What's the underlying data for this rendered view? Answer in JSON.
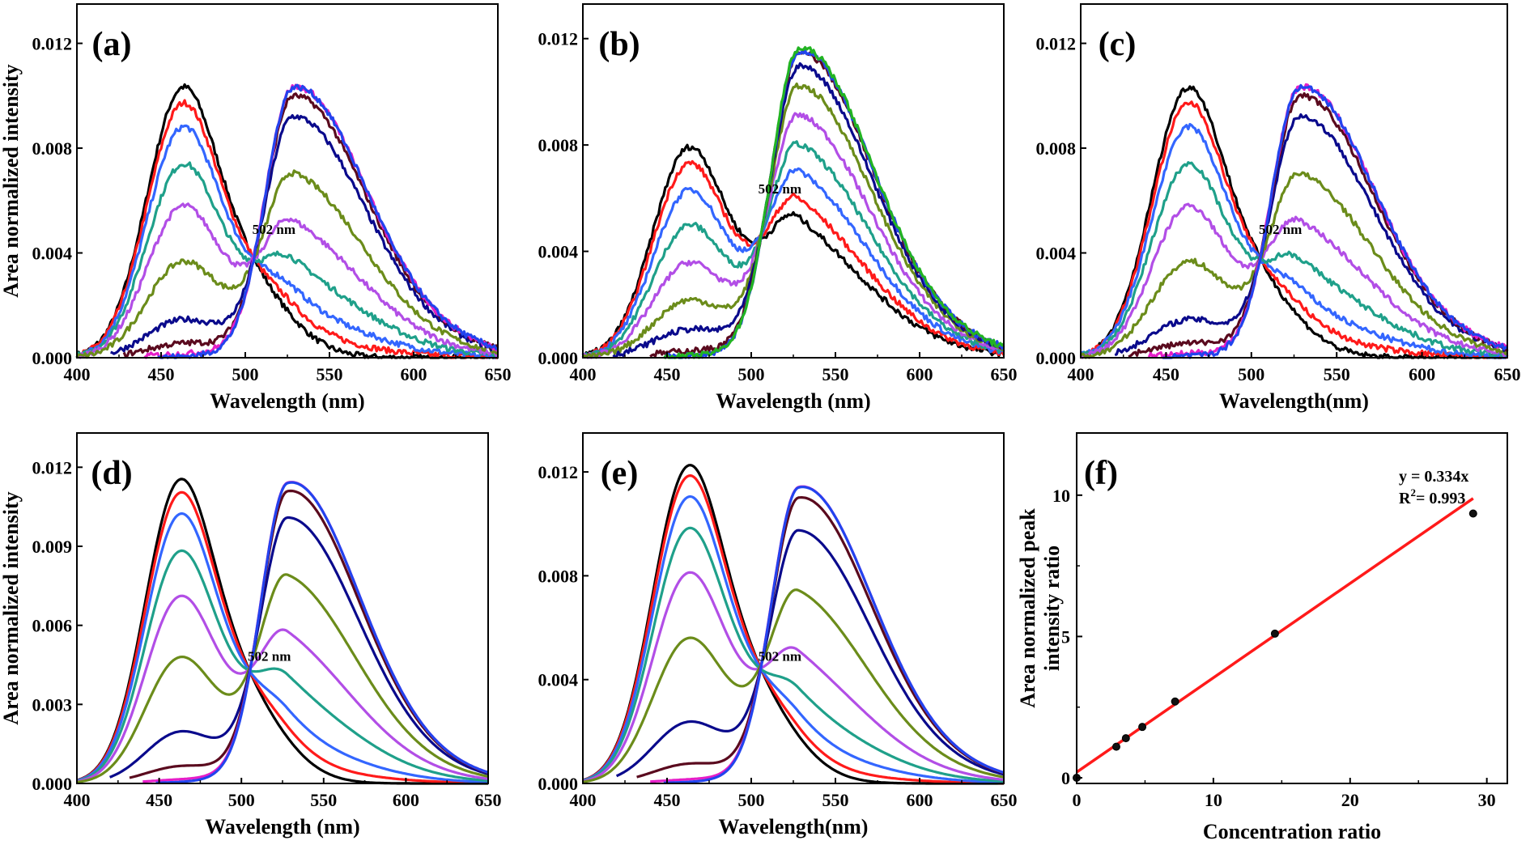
{
  "chart_data": [
    {
      "type": "line",
      "panel": "(a)",
      "xlabel": "Wavelength (nm)",
      "ylabel": "Area normalized intensity",
      "xlim": [
        400,
        650
      ],
      "ylim": [
        0,
        0.0135
      ],
      "xticks": [
        "400",
        "450",
        "500",
        "550",
        "600",
        "650"
      ],
      "yticks": [
        "0.000",
        "0.004",
        "0.008",
        "0.012"
      ],
      "annotation": "502 nm",
      "noisy": true,
      "series": [
        {
          "color": "#000000",
          "start": 400,
          "peak1": 0.0102,
          "peak2": 0.0
        },
        {
          "color": "#ff1a1a",
          "start": 400,
          "peak1": 0.0096,
          "peak2": 0.0006
        },
        {
          "color": "#3366ff",
          "start": 400,
          "peak1": 0.0087,
          "peak2": 0.0014
        },
        {
          "color": "#1fa08a",
          "start": 400,
          "peak1": 0.0073,
          "peak2": 0.0027
        },
        {
          "color": "#b24ee6",
          "start": 400,
          "peak1": 0.0057,
          "peak2": 0.0044
        },
        {
          "color": "#6b8c1a",
          "start": 400,
          "peak1": 0.0036,
          "peak2": 0.0065
        },
        {
          "color": "#0a0a8c",
          "start": 420,
          "peak1": 0.0014,
          "peak2": 0.009
        },
        {
          "color": "#5a0a1e",
          "start": 428,
          "peak1": 0.0005,
          "peak2": 0.0099
        },
        {
          "color": "#e61ec8",
          "start": 440,
          "peak1": 0.0001,
          "peak2": 0.0103
        },
        {
          "color": "#2244ee",
          "start": 448,
          "peak1": 0.0,
          "peak2": 0.0103
        }
      ]
    },
    {
      "type": "line",
      "panel": "(b)",
      "xlabel": "Wavelength (nm)",
      "ylabel": "",
      "xlim": [
        400,
        650
      ],
      "ylim": [
        0,
        0.0133
      ],
      "xticks": [
        "400",
        "450",
        "500",
        "550",
        "600",
        "650"
      ],
      "yticks": [
        "0.000",
        "0.004",
        "0.008",
        "0.012"
      ],
      "annotation": "502 nm",
      "noisy": true,
      "series": [
        {
          "color": "#000000",
          "start": 400,
          "peak1": 0.0078,
          "peak2": 0.0041
        },
        {
          "color": "#ff1a1a",
          "start": 400,
          "peak1": 0.0072,
          "peak2": 0.0049
        },
        {
          "color": "#3366ff",
          "start": 400,
          "peak1": 0.0062,
          "peak2": 0.0061
        },
        {
          "color": "#1fa08a",
          "start": 400,
          "peak1": 0.0049,
          "peak2": 0.0073
        },
        {
          "color": "#b24ee6",
          "start": 400,
          "peak1": 0.0035,
          "peak2": 0.0086
        },
        {
          "color": "#6b8c1a",
          "start": 400,
          "peak1": 0.0021,
          "peak2": 0.0099
        },
        {
          "color": "#0a0a8c",
          "start": 418,
          "peak1": 0.001,
          "peak2": 0.0108
        },
        {
          "color": "#5a0a1e",
          "start": 440,
          "peak1": 0.0002,
          "peak2": 0.0114
        },
        {
          "color": "#2244ee",
          "start": 448,
          "peak1": 0.0,
          "peak2": 0.0115
        },
        {
          "color": "#22b422",
          "start": 448,
          "peak1": 0.0,
          "peak2": 0.0116
        }
      ]
    },
    {
      "type": "line",
      "panel": "(c)",
      "xlabel": "Wavelength(nm)",
      "ylabel": "",
      "xlim": [
        400,
        650
      ],
      "ylim": [
        0,
        0.0135
      ],
      "xticks": [
        "400",
        "450",
        "500",
        "550",
        "600",
        "650"
      ],
      "yticks": [
        "0.000",
        "0.004",
        "0.008",
        "0.012"
      ],
      "annotation": "502 nm",
      "noisy": true,
      "series": [
        {
          "color": "#000000",
          "start": 400,
          "peak1": 0.0102,
          "peak2": 0.0
        },
        {
          "color": "#ff1a1a",
          "start": 400,
          "peak1": 0.0096,
          "peak2": 0.0006
        },
        {
          "color": "#3366ff",
          "start": 400,
          "peak1": 0.0087,
          "peak2": 0.0014
        },
        {
          "color": "#1fa08a",
          "start": 400,
          "peak1": 0.0073,
          "peak2": 0.0027
        },
        {
          "color": "#b24ee6",
          "start": 400,
          "peak1": 0.0057,
          "peak2": 0.0044
        },
        {
          "color": "#6b8c1a",
          "start": 400,
          "peak1": 0.0036,
          "peak2": 0.0065
        },
        {
          "color": "#0a0a8c",
          "start": 420,
          "peak1": 0.0014,
          "peak2": 0.009
        },
        {
          "color": "#5a0a1e",
          "start": 428,
          "peak1": 0.0005,
          "peak2": 0.0099
        },
        {
          "color": "#e61ec8",
          "start": 440,
          "peak1": 0.0001,
          "peak2": 0.0103
        },
        {
          "color": "#2244ee",
          "start": 448,
          "peak1": 0.0,
          "peak2": 0.0103
        }
      ]
    },
    {
      "type": "line",
      "panel": "(d)",
      "xlabel": "Wavelength (nm)",
      "ylabel": "Area normalized intensity",
      "xlim": [
        400,
        650
      ],
      "ylim": [
        0,
        0.0133
      ],
      "xticks": [
        "400",
        "450",
        "500",
        "550",
        "600",
        "650"
      ],
      "yticks": [
        "0.000",
        "0.003",
        "0.006",
        "0.009",
        "0.012"
      ],
      "annotation": "502 nm",
      "noisy": false,
      "series": [
        {
          "color": "#000000",
          "start": 400,
          "peak1": 0.0114,
          "peak2": 0.0
        },
        {
          "color": "#ff1a1a",
          "start": 400,
          "peak1": 0.0109,
          "peak2": 0.0005
        },
        {
          "color": "#3366ff",
          "start": 400,
          "peak1": 0.0101,
          "peak2": 0.0013
        },
        {
          "color": "#1fa08a",
          "start": 400,
          "peak1": 0.0087,
          "peak2": 0.0028
        },
        {
          "color": "#b24ee6",
          "start": 400,
          "peak1": 0.007,
          "peak2": 0.0047
        },
        {
          "color": "#6b8c1a",
          "start": 400,
          "peak1": 0.0047,
          "peak2": 0.0072
        },
        {
          "color": "#0a0a8c",
          "start": 420,
          "peak1": 0.0019,
          "peak2": 0.0098
        },
        {
          "color": "#5a0a1e",
          "start": 432,
          "peak1": 0.0006,
          "peak2": 0.011
        },
        {
          "color": "#e61ec8",
          "start": 440,
          "peak1": 0.0001,
          "peak2": 0.0114
        },
        {
          "color": "#2244ee",
          "start": 448,
          "peak1": 0.0,
          "peak2": 0.0114
        }
      ]
    },
    {
      "type": "line",
      "panel": "(e)",
      "xlabel": "Wavelength(nm)",
      "ylabel": "",
      "xlim": [
        400,
        650
      ],
      "ylim": [
        0,
        0.0135
      ],
      "xticks": [
        "400",
        "450",
        "500",
        "550",
        "600",
        "650"
      ],
      "yticks": [
        "0.000",
        "0.004",
        "0.008",
        "0.012"
      ],
      "annotation": "502 nm",
      "noisy": false,
      "series": [
        {
          "color": "#000000",
          "start": 400,
          "peak1": 0.0121,
          "peak2": 0.0
        },
        {
          "color": "#ff1a1a",
          "start": 400,
          "peak1": 0.0117,
          "peak2": 0.0004
        },
        {
          "color": "#3366ff",
          "start": 400,
          "peak1": 0.0109,
          "peak2": 0.0011
        },
        {
          "color": "#1fa08a",
          "start": 400,
          "peak1": 0.0097,
          "peak2": 0.0022
        },
        {
          "color": "#b24ee6",
          "start": 400,
          "peak1": 0.008,
          "peak2": 0.0039
        },
        {
          "color": "#6b8c1a",
          "start": 400,
          "peak1": 0.0055,
          "peak2": 0.0066
        },
        {
          "color": "#0a0a8c",
          "start": 420,
          "peak1": 0.0023,
          "peak2": 0.0094
        },
        {
          "color": "#5a0a1e",
          "start": 432,
          "peak1": 0.0007,
          "peak2": 0.0109
        },
        {
          "color": "#e61ec8",
          "start": 440,
          "peak1": 0.0001,
          "peak2": 0.0114
        },
        {
          "color": "#2244ee",
          "start": 448,
          "peak1": 0.0,
          "peak2": 0.0114
        }
      ]
    },
    {
      "type": "scatter",
      "panel": "(f)",
      "xlabel": "Concentration ratio",
      "ylabel": [
        "Area normalized peak",
        "intensity ratio"
      ],
      "xlim": [
        0,
        31.5
      ],
      "ylim": [
        -0.2,
        12.2
      ],
      "xticks": [
        "0",
        "10",
        "20",
        "30"
      ],
      "yticks": [
        "0",
        "5",
        "10"
      ],
      "x": [
        0,
        2.9,
        3.6,
        4.8,
        7.2,
        14.5,
        29.0
      ],
      "y": [
        0.0,
        1.1,
        1.4,
        1.8,
        2.7,
        5.1,
        9.35
      ],
      "fit": {
        "slope": 0.334,
        "intercept": 0.2,
        "x_range": [
          0,
          29
        ],
        "color": "#ff1a1a"
      },
      "equation": "y = 0.334x",
      "r2_prefix": "R",
      "r2_sup": "2",
      "r2_value": "= 0.993"
    }
  ]
}
